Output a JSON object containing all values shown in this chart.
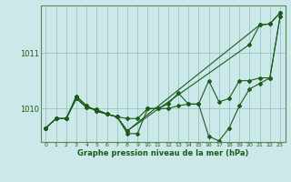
{
  "xlabel": "Graphe pression niveau de la mer (hPa)",
  "ylabel": "",
  "bg_color": "#cce8e8",
  "plot_bg_color": "#cce8e8",
  "line_color": "#1a5c1a",
  "x_ticks": [
    0,
    1,
    2,
    3,
    4,
    5,
    6,
    7,
    8,
    9,
    10,
    11,
    12,
    13,
    14,
    15,
    16,
    17,
    18,
    19,
    20,
    21,
    22,
    23
  ],
  "ylim": [
    1009.4,
    1011.85
  ],
  "yticks": [
    1010,
    1011
  ],
  "series": [
    [
      1009.65,
      1009.82,
      1009.82,
      1010.18,
      1010.02,
      1009.98,
      1009.9,
      1009.85,
      1009.82,
      1009.82,
      1010.0,
      1010.0,
      1010.0,
      1010.05,
      1010.08,
      1010.08,
      1010.5,
      1010.12,
      1010.18,
      1010.5,
      1010.5,
      1010.55,
      1010.55,
      1011.65
    ],
    [
      1009.65,
      1009.82,
      1009.82,
      1010.18,
      1010.02,
      1009.98,
      1009.9,
      1009.85,
      1009.55,
      1009.55,
      1010.0,
      1010.0,
      1010.08,
      1010.28,
      1010.08,
      1010.08,
      1009.5,
      1009.42,
      1009.65,
      1010.05,
      1010.35,
      1010.45,
      1010.55,
      1011.65
    ],
    [
      1009.65,
      1009.82,
      1009.82,
      1010.22,
      1010.05,
      1009.95,
      1009.9,
      1009.85,
      1009.6,
      null,
      null,
      null,
      null,
      null,
      null,
      null,
      null,
      null,
      null,
      null,
      null,
      1011.5,
      1011.52,
      1011.72
    ],
    [
      1009.65,
      1009.82,
      1009.82,
      1010.22,
      1010.05,
      1009.95,
      1009.9,
      1009.85,
      1009.6,
      null,
      null,
      null,
      null,
      null,
      null,
      null,
      null,
      null,
      null,
      null,
      1011.15,
      1011.5,
      1011.52,
      1011.72
    ]
  ]
}
